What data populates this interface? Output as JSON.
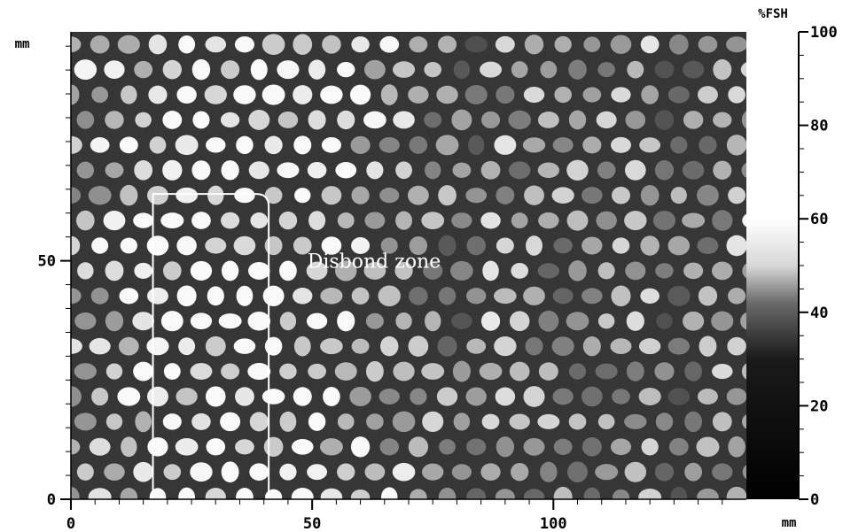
{
  "chart_data": {
    "type": "heatmap",
    "title": "",
    "x_unit": "mm",
    "y_unit": "mm",
    "xlim": [
      0,
      140
    ],
    "ylim": [
      0,
      98
    ],
    "xticks": [
      "0",
      "50",
      "100"
    ],
    "xtick_values": [
      0,
      50,
      100
    ],
    "yticks": [
      "0",
      "50"
    ],
    "ytick_values": [
      0,
      50
    ],
    "colorbar": {
      "label": "%FSH",
      "range": [
        0,
        100
      ],
      "ticks": [
        "0",
        "20",
        "40",
        "60",
        "80",
        "100"
      ],
      "tick_values": [
        0,
        20,
        40,
        60,
        80,
        100
      ],
      "colormap": [
        "#000000",
        "#ffffff"
      ]
    },
    "annotation": {
      "text": "Disbond zone",
      "x": 49,
      "y": 50
    },
    "disbond_region": {
      "x": [
        17,
        41
      ],
      "y": [
        0,
        64
      ]
    },
    "cell_pattern": "honeycomb",
    "cell_pitch_mm": 6
  }
}
